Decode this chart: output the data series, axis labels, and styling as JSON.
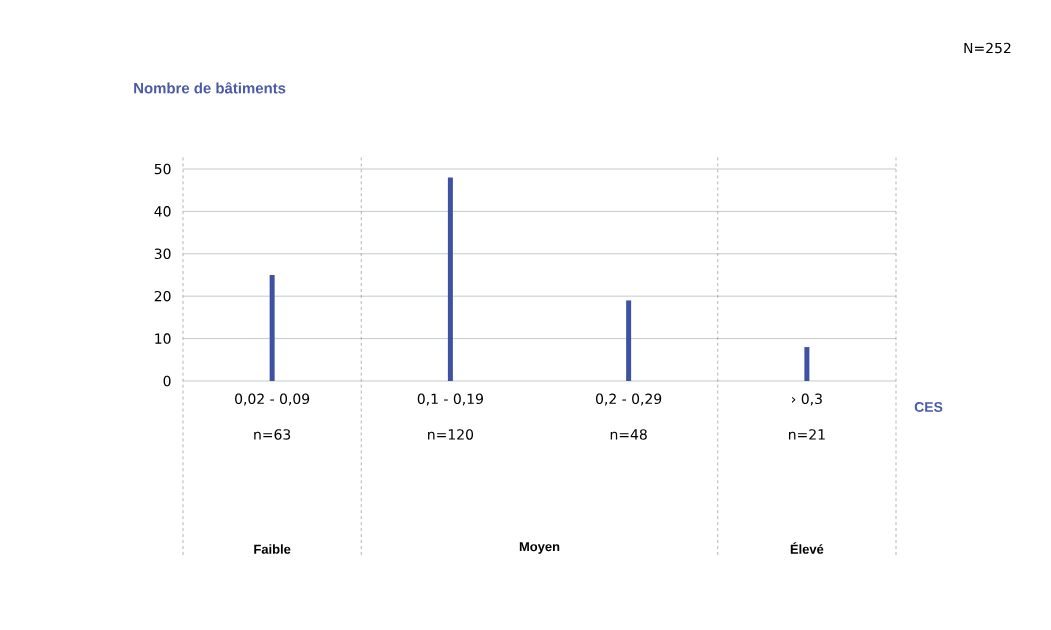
{
  "chart_data": {
    "type": "bar",
    "ylabel": "Nombre de bâtiments",
    "xlabel": "CES",
    "categories": [
      "0,02 - 0,09",
      "0,1 - 0,19",
      "0,2 - 0,29",
      "› 0,3"
    ],
    "values": [
      25,
      48,
      19,
      8
    ],
    "color": "#3f51a3",
    "ylim": [
      0,
      50
    ],
    "yticks": [
      0,
      10,
      20,
      30,
      40,
      50
    ],
    "grid": "y",
    "annotations": [
      "N=252",
      "n=63",
      "n=120",
      "n=48",
      "n=21",
      "Faible",
      "Moyen",
      "Élevé"
    ]
  }
}
